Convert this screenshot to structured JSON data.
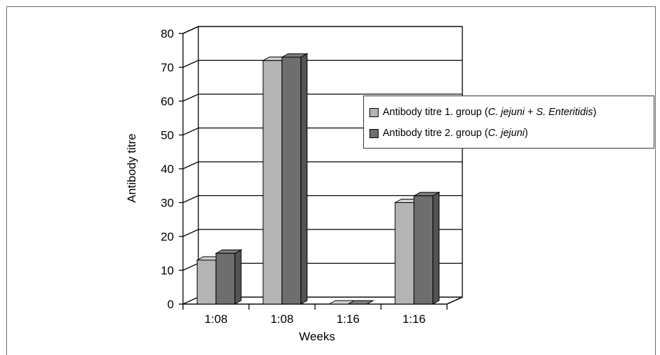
{
  "chart_data": {
    "type": "bar",
    "style": "3d-clustered-column",
    "categories": [
      "1:08",
      "1:08",
      "1:16",
      "1:16"
    ],
    "series": [
      {
        "name": "Antibody titre 1. group (C. jejuni + S. Enteritidis)",
        "values": [
          13,
          72,
          0,
          30
        ],
        "color": "#b4b4b4"
      },
      {
        "name": "Antibody titre 2. group (C. jejuni)",
        "values": [
          15,
          73,
          0,
          32
        ],
        "color": "#6e6e6e"
      }
    ],
    "xlabel": "Weeks",
    "ylabel": "Antibody titre",
    "ylim": [
      0,
      80
    ],
    "yticks": [
      0,
      10,
      20,
      30,
      40,
      50,
      60,
      70,
      80
    ],
    "grid": true,
    "legend_position": "right"
  },
  "legend": {
    "items": [
      {
        "prefix": "Antibody titre 1. group (",
        "italic1": "C. jejuni",
        "mid": " + ",
        "italic2": "S. Enteritidis",
        "suffix": ")"
      },
      {
        "prefix": "Antibody titre 2. group (",
        "italic1": "C. jejuni",
        "mid": "",
        "italic2": "",
        "suffix": ")"
      }
    ]
  },
  "colors": {
    "series1": "#b4b4b4",
    "series2": "#6e6e6e",
    "grid": "#000000"
  }
}
